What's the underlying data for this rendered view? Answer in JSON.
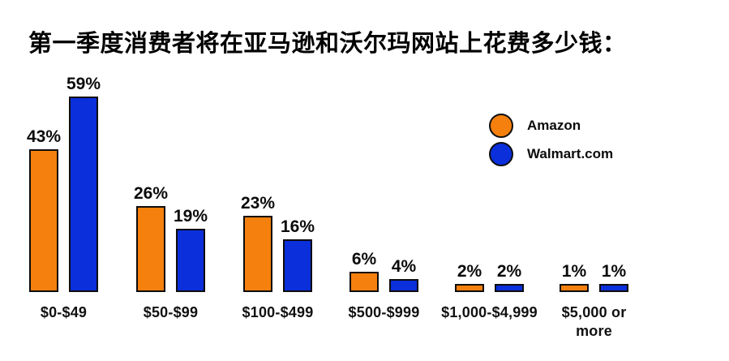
{
  "chart_data": {
    "type": "bar",
    "title": "第一季度消费者将在亚马逊和沃尔玛网站上花费多少钱：",
    "categories": [
      "$0-$49",
      "$50-$99",
      "$100-$499",
      "$500-$999",
      "$1,000-$4,999",
      "$5,000 or\nmore"
    ],
    "series": [
      {
        "name": "Amazon",
        "color": "#F5800D",
        "values": [
          43,
          26,
          23,
          6,
          2,
          1
        ]
      },
      {
        "name": "Walmart.com",
        "color": "#0A2FDB",
        "values": [
          59,
          19,
          16,
          4,
          2,
          1
        ]
      }
    ],
    "value_suffix": "%",
    "ylim": [
      0,
      60
    ],
    "grid": false,
    "axis_lines": false,
    "legend_position": "upper-right",
    "bar_outline_color": "#0D0D0D",
    "background": "#FFFFFF"
  }
}
